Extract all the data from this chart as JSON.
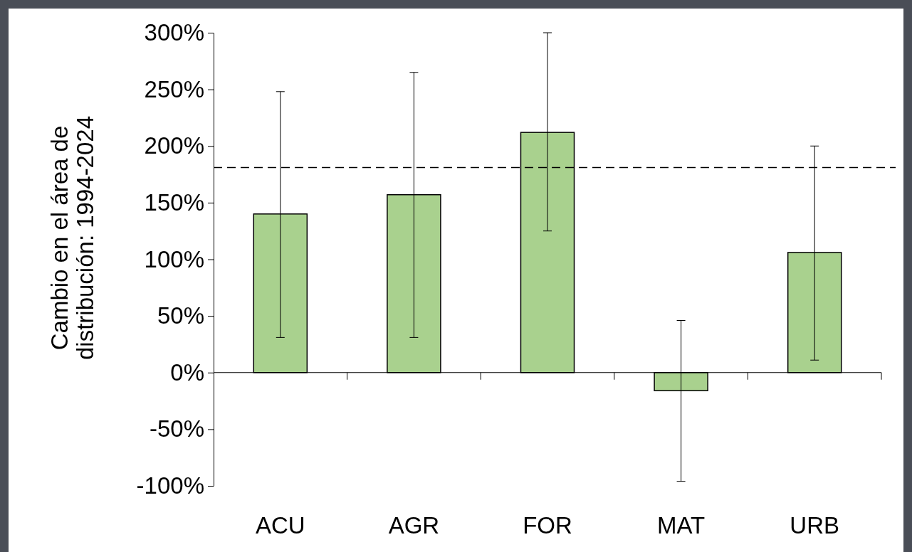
{
  "chart_data": {
    "type": "bar",
    "ylabel": "Cambio en el área de distribución: 1994-2024",
    "categories": [
      "ACU",
      "AGR",
      "FOR",
      "MAT",
      "URB"
    ],
    "values": [
      140,
      157,
      212,
      -16,
      106
    ],
    "errors": [
      [
        31,
        248
      ],
      [
        31,
        265
      ],
      [
        125,
        300
      ],
      [
        -96,
        46
      ],
      [
        11,
        200
      ]
    ],
    "color": "#a9d18e",
    "ylim": [
      -100,
      300
    ],
    "yticks": [
      {
        "value": -100,
        "label": "-100%"
      },
      {
        "value": -50,
        "label": "-50%"
      },
      {
        "value": 0,
        "label": "0%"
      },
      {
        "value": 50,
        "label": "50%"
      },
      {
        "value": 100,
        "label": "100%"
      },
      {
        "value": 150,
        "label": "150%"
      },
      {
        "value": 200,
        "label": "200%"
      },
      {
        "value": 250,
        "label": "250%"
      },
      {
        "value": 300,
        "label": "300%"
      }
    ],
    "ref_lines": [
      {
        "axis": "y",
        "value": 181,
        "color": "#000000",
        "line_style": "dashed"
      }
    ],
    "legend": false
  }
}
